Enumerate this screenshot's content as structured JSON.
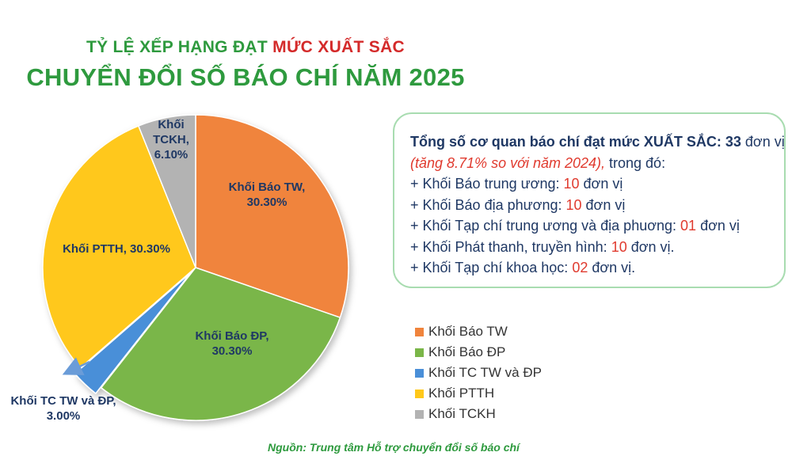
{
  "title": {
    "line1_prefix": "TỶ LỆ XẾP HẠNG ĐẠT",
    "line1_highlight": "MỨC XUẤT SẮC",
    "line2": "CHUYỂN ĐỔI SỐ BÁO CHÍ NĂM 2025"
  },
  "chart_data": {
    "type": "pie",
    "categories": [
      "Khối Báo TW",
      "Khối Báo ĐP",
      "Khối TC TW và ĐP",
      "Khối PTTH",
      "Khối TCKH"
    ],
    "values": [
      30.3,
      30.3,
      3.0,
      30.3,
      6.1
    ],
    "unit": "%",
    "colors": [
      "#f0843c",
      "#7ab648",
      "#4a8fd8",
      "#ffc81a",
      "#b3b3b3"
    ],
    "legend_position": "bottom-right",
    "data_labels": [
      {
        "line1": "Khối Báo TW,",
        "line2": "30.30%"
      },
      {
        "line1": "Khối Báo ĐP,",
        "line2": "30.30%"
      },
      {
        "line1": "Khối TC TW và ĐP,",
        "line2": "3.00%"
      },
      {
        "line1": "Khối PTTH, 30.30%",
        "line2": ""
      },
      {
        "line1": "Khối",
        "line2": "TCKH,",
        "line3": "6.10%"
      }
    ]
  },
  "summary": {
    "line1_bold": "Tổng số cơ quan báo chí đạt mức XUẤT SẮC: 33",
    "line1_rest": " đơn vị",
    "line2_italic": "(tăng 8.71% so với năm 2024),",
    "line2_rest": " trong đó:",
    "items": [
      {
        "prefix": "+ Khối Báo trung ương: ",
        "num": "10",
        "suffix": " đơn vị"
      },
      {
        "prefix": "+ Khối Báo địa phương: ",
        "num": "10",
        "suffix": " đơn vị"
      },
      {
        "prefix": "+ Khối Tạp chí trung ương và địa phuơng: ",
        "num": "01",
        "suffix": " đơn vị"
      },
      {
        "prefix": "+ Khối Phát thanh, truyền hình: ",
        "num": "10",
        "suffix": " đơn vị."
      },
      {
        "prefix": "+ Khối Tạp chí khoa học: ",
        "num": "02",
        "suffix": " đơn vị."
      }
    ]
  },
  "source": "Nguồn: Trung tâm Hỗ trợ chuyển đổi số báo chí"
}
